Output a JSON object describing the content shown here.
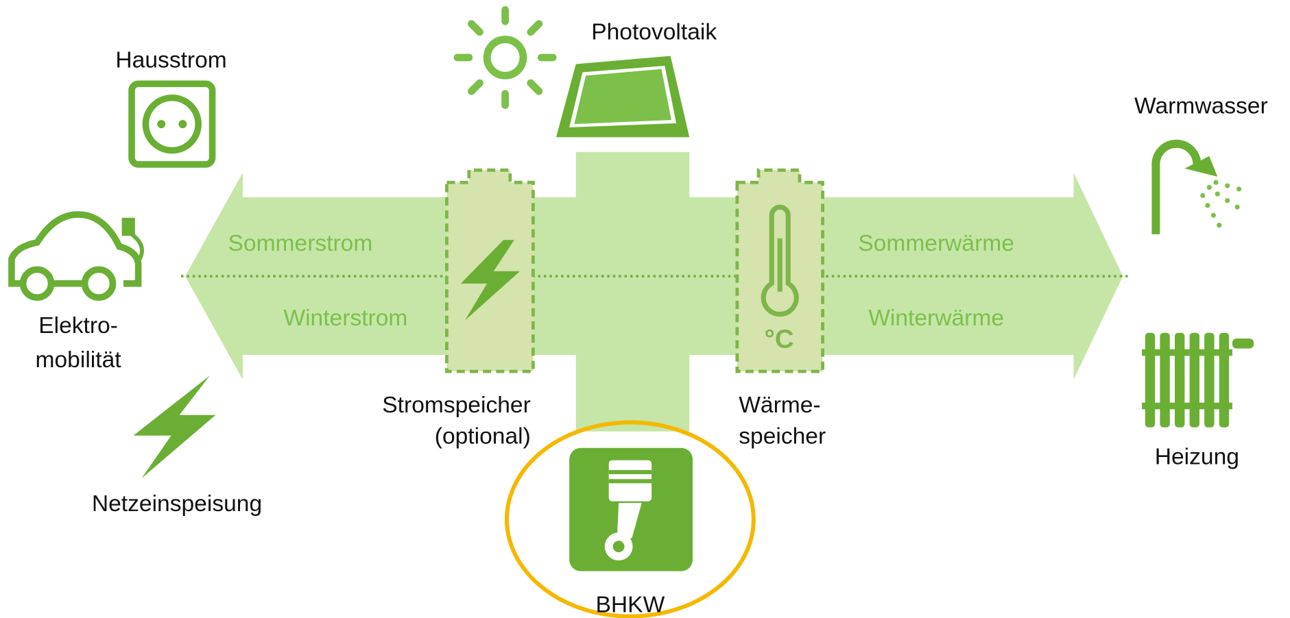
{
  "labels": {
    "hausstrom": "Hausstrom",
    "photovoltaik": "Photovoltaik",
    "warmwasser": "Warmwasser",
    "elektromobilitaet": [
      "Elektro-",
      "mobilität"
    ],
    "netzeinspeisung": "Netzeinspeisung",
    "stromspeicher": [
      "Stromspeicher",
      "(optional)"
    ],
    "waermespeicher": [
      "Wärme-",
      "speicher"
    ],
    "heizung": "Heizung",
    "bhkw": "BHKW",
    "celsius": "°C"
  },
  "flows": {
    "sommerstrom": "Sommerstrom",
    "winterstrom": "Winterstrom",
    "sommerwaerme": "Sommerwärme",
    "winterwaerme": "Winterwärme"
  }
}
